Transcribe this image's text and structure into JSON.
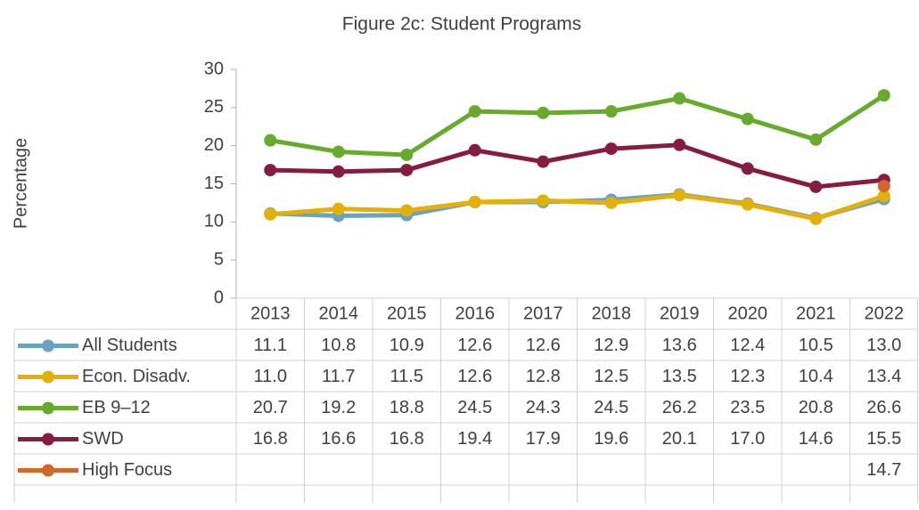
{
  "chart_data": {
    "type": "line",
    "title": "Figure 2c:  Student Programs",
    "y_label": "Percentage",
    "categories": [
      "2013",
      "2014",
      "2015",
      "2016",
      "2017",
      "2018",
      "2019",
      "2020",
      "2021",
      "2022"
    ],
    "ylim": [
      0,
      30
    ],
    "yticks": [
      0,
      5,
      10,
      15,
      20,
      25,
      30
    ],
    "series": [
      {
        "name": "All Students",
        "color": "#6aa2c0",
        "values": [
          11.1,
          10.8,
          10.9,
          12.6,
          12.6,
          12.9,
          13.6,
          12.4,
          10.5,
          13.0
        ],
        "value_labels": [
          "11.1",
          "10.8",
          "10.9",
          "12.6",
          "12.6",
          "12.9",
          "13.6",
          "12.4",
          "10.5",
          "13.0"
        ]
      },
      {
        "name": "Econ. Disadv.",
        "color": "#e3b005",
        "values": [
          11.0,
          11.7,
          11.5,
          12.6,
          12.8,
          12.5,
          13.5,
          12.3,
          10.4,
          13.4
        ],
        "value_labels": [
          "11.0",
          "11.7",
          "11.5",
          "12.6",
          "12.8",
          "12.5",
          "13.5",
          "12.3",
          "10.4",
          "13.4"
        ]
      },
      {
        "name": "EB 9–12",
        "color": "#67ab2c",
        "values": [
          20.7,
          19.2,
          18.8,
          24.5,
          24.3,
          24.5,
          26.2,
          23.5,
          20.8,
          26.6
        ],
        "value_labels": [
          "20.7",
          "19.2",
          "18.8",
          "24.5",
          "24.3",
          "24.5",
          "26.2",
          "23.5",
          "20.8",
          "26.6"
        ]
      },
      {
        "name": "SWD",
        "color": "#861c40",
        "values": [
          16.8,
          16.6,
          16.8,
          19.4,
          17.9,
          19.6,
          20.1,
          17.0,
          14.6,
          15.5
        ],
        "value_labels": [
          "16.8",
          "16.6",
          "16.8",
          "19.4",
          "17.9",
          "19.6",
          "20.1",
          "17.0",
          "14.6",
          "15.5"
        ]
      },
      {
        "name": "High Focus",
        "color": "#d4662c",
        "values": [
          null,
          null,
          null,
          null,
          null,
          null,
          null,
          null,
          null,
          14.7
        ],
        "value_labels": [
          null,
          null,
          null,
          null,
          null,
          null,
          null,
          null,
          null,
          "14.7"
        ]
      }
    ]
  }
}
